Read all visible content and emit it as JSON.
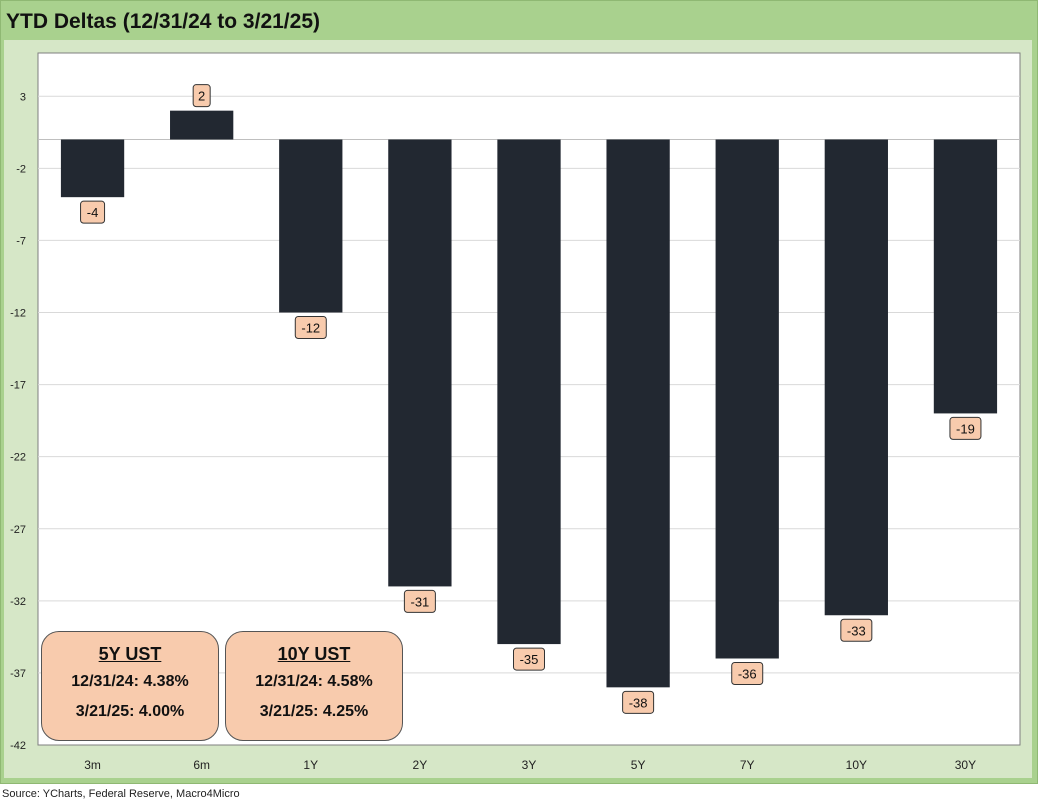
{
  "title": "YTD Deltas (12/31/24 to 3/21/25)",
  "source": "Source: YCharts, Federal Reserve, Macro4Micro",
  "colors": {
    "frame": "#a9d18e",
    "plot_bg": "#ffffff",
    "bar": "#222831",
    "label_bg": "#f8cbad",
    "grid": "#d9d9d9"
  },
  "chart_data": {
    "type": "bar",
    "categories": [
      "3m",
      "6m",
      "1Y",
      "2Y",
      "3Y",
      "5Y",
      "7Y",
      "10Y",
      "30Y"
    ],
    "values": [
      -4,
      2,
      -12,
      -31,
      -35,
      -38,
      -36,
      -33,
      -19
    ],
    "data_labels": [
      "-4",
      "2",
      "-12",
      "-31",
      "-35",
      "-38",
      "-36",
      "-33",
      "-19"
    ],
    "yticks": [
      3,
      -2,
      -7,
      -12,
      -17,
      -22,
      -27,
      -32,
      -37,
      -42
    ],
    "ylim": [
      -42,
      6
    ],
    "grid": true,
    "legend": "none"
  },
  "boxes": [
    {
      "title": "5Y UST",
      "line1": "12/31/24: 4.38%",
      "line2": "3/21/25: 4.00%"
    },
    {
      "title": "10Y UST",
      "line1": "12/31/24: 4.58%",
      "line2": "3/21/25: 4.25%"
    }
  ]
}
